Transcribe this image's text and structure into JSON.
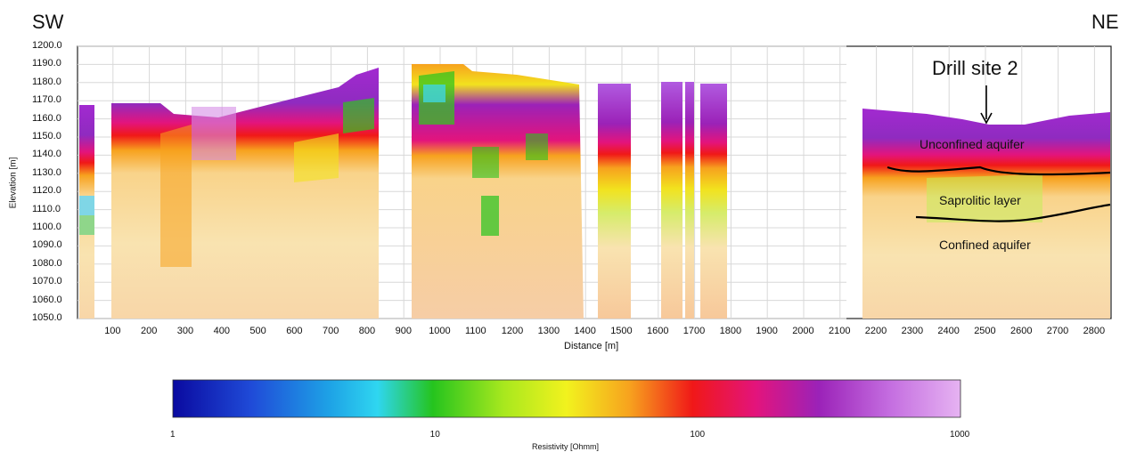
{
  "direction": {
    "left": "SW",
    "right": "NE"
  },
  "axes": {
    "y_label": "Elevation [m]",
    "y_ticks": [
      "1200.0",
      "1190.0",
      "1180.0",
      "1170.0",
      "1160.0",
      "1150.0",
      "1140.0",
      "1130.0",
      "1120.0",
      "1110.0",
      "1100.0",
      "1090.0",
      "1080.0",
      "1070.0",
      "1060.0",
      "1050.0"
    ],
    "x_label": "Distance [m]",
    "x_ticks": [
      "100",
      "200",
      "300",
      "400",
      "500",
      "600",
      "700",
      "800",
      "900",
      "1000",
      "1100",
      "1200",
      "1300",
      "1400",
      "1500",
      "1600",
      "1700",
      "1800",
      "1900",
      "2000",
      "2100",
      "2200",
      "2300",
      "2400",
      "2500",
      "2600",
      "2700",
      "2800"
    ]
  },
  "annotations": {
    "drill_site": "Drill site 2",
    "unconfined": "Unconfined aquifer",
    "saprolitic": "Saprolitic layer",
    "confined": "Confined aquifer"
  },
  "colorbar": {
    "title": "Resistivity [Ohmm]",
    "ticks": [
      "1",
      "10",
      "100",
      "1000"
    ],
    "scale": "log",
    "colors": [
      "#0a0aa0",
      "#1f4bd8",
      "#1ea3e6",
      "#2fd6f0",
      "#25c41e",
      "#a8e81e",
      "#f2f21e",
      "#f7a21e",
      "#f01818",
      "#e3147c",
      "#9b22b8",
      "#c46de0",
      "#e6b3f2"
    ]
  }
}
